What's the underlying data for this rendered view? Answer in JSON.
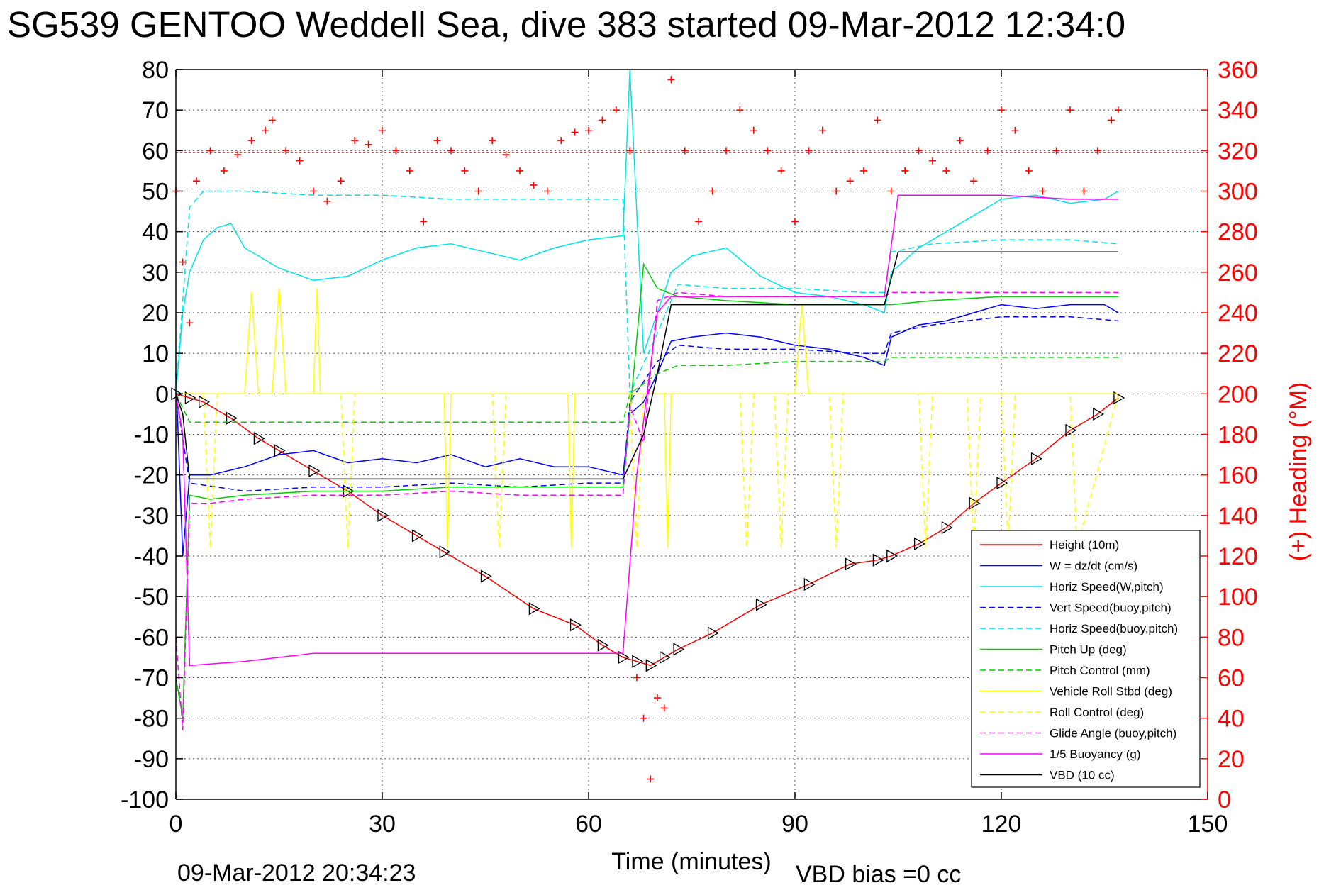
{
  "chart_data": {
    "type": "line",
    "title": "SG539 GENTOO Weddell Sea, dive 383 started 09-Mar-2012 12:34:0",
    "xlabel": "Time (minutes)",
    "ylabel": "",
    "ylabel_right": "(+) Heading (°M)",
    "xlim": [
      0,
      150
    ],
    "ylim": [
      -100,
      80
    ],
    "ylim_right": [
      0,
      360
    ],
    "x_ticks": [
      0,
      30,
      60,
      90,
      120,
      150
    ],
    "y_ticks": [
      80,
      70,
      60,
      50,
      40,
      30,
      20,
      10,
      0,
      -10,
      -20,
      -30,
      -40,
      -50,
      -60,
      -70,
      -80,
      -90,
      -100
    ],
    "y_ticks_right": [
      360,
      340,
      320,
      300,
      280,
      260,
      240,
      220,
      200,
      180,
      160,
      140,
      120,
      100,
      80,
      60,
      40,
      20,
      0
    ],
    "grid": true,
    "legend_position": "bottom-right",
    "footer_left": "09-Mar-2012 20:34:23",
    "footer_right": "VBD bias =0 cc",
    "reference_line_right": 319,
    "series": [
      {
        "name": "Height (10m)",
        "color": "#ff0000",
        "style": "solid",
        "marker": "triangle",
        "x": [
          0,
          2,
          4,
          8,
          12,
          15,
          20,
          25,
          30,
          35,
          39,
          45,
          52,
          58,
          62,
          65,
          67,
          69,
          71,
          73,
          78,
          85,
          92,
          98,
          102,
          104,
          108,
          112,
          116,
          120,
          125,
          130,
          134,
          137
        ],
        "y": [
          0,
          -1,
          -2,
          -6,
          -11,
          -14,
          -19,
          -24,
          -30,
          -35,
          -39,
          -45,
          -53,
          -57,
          -62,
          -65,
          -66,
          -67,
          -65,
          -63,
          -59,
          -52,
          -47,
          -42,
          -41,
          -40,
          -37,
          -33,
          -27,
          -22,
          -16,
          -9,
          -5,
          -1
        ]
      },
      {
        "name": "W = dz/dt (cm/s)",
        "color": "#0000ff",
        "style": "solid",
        "x": [
          0,
          1,
          2,
          5,
          10,
          15,
          20,
          25,
          30,
          35,
          40,
          45,
          50,
          55,
          60,
          65,
          66,
          68,
          70,
          72,
          75,
          80,
          85,
          90,
          95,
          100,
          103,
          104,
          108,
          112,
          116,
          120,
          125,
          130,
          135,
          137
        ],
        "y": [
          5,
          -40,
          -20,
          -20,
          -18,
          -15,
          -14,
          -17,
          -16,
          -17,
          -15,
          -18,
          -16,
          -18,
          -18,
          -20,
          -5,
          -2,
          5,
          13,
          14,
          15,
          14,
          12,
          11,
          9,
          7,
          14,
          17,
          18,
          20,
          22,
          21,
          22,
          22,
          20
        ]
      },
      {
        "name": "Horiz Speed(W,pitch)",
        "color": "#00e5e5",
        "style": "solid",
        "x": [
          0,
          1,
          2,
          4,
          6,
          8,
          10,
          15,
          20,
          25,
          30,
          35,
          40,
          45,
          50,
          55,
          60,
          65,
          66,
          68,
          70,
          72,
          75,
          80,
          85,
          90,
          95,
          100,
          103,
          104,
          108,
          112,
          116,
          120,
          125,
          130,
          135,
          137
        ],
        "y": [
          0,
          20,
          30,
          38,
          41,
          42,
          36,
          31,
          28,
          29,
          33,
          36,
          37,
          35,
          33,
          36,
          38,
          39,
          80,
          10,
          20,
          30,
          34,
          36,
          29,
          25,
          24,
          22,
          20,
          30,
          36,
          40,
          44,
          48,
          49,
          47,
          48,
          50
        ]
      },
      {
        "name": "Vert Speed(buoy,pitch)",
        "color": "#0000ff",
        "style": "dashed",
        "x": [
          0,
          2,
          10,
          20,
          30,
          40,
          50,
          60,
          65,
          66,
          70,
          73,
          80,
          90,
          100,
          103,
          104,
          110,
          120,
          130,
          137
        ],
        "y": [
          0,
          -22,
          -24,
          -23,
          -23,
          -22,
          -23,
          -22,
          -22,
          -2,
          8,
          12,
          11,
          11,
          10,
          10,
          15,
          17,
          19,
          19,
          18
        ]
      },
      {
        "name": "Horiz Speed(buoy,pitch)",
        "color": "#00e5e5",
        "style": "dashed",
        "x": [
          0,
          2,
          4,
          10,
          20,
          30,
          40,
          50,
          60,
          65,
          66,
          70,
          73,
          80,
          90,
          100,
          103,
          104,
          110,
          120,
          130,
          137
        ],
        "y": [
          0,
          46,
          50,
          50,
          49,
          49,
          48,
          48,
          48,
          48,
          0,
          15,
          27,
          26,
          26,
          25,
          25,
          35,
          37,
          38,
          38,
          37
        ]
      },
      {
        "name": "Pitch Up (deg)",
        "color": "#00cc00",
        "style": "solid",
        "x": [
          0,
          1,
          2,
          5,
          10,
          20,
          30,
          40,
          50,
          60,
          65,
          66,
          68,
          70,
          73,
          80,
          90,
          100,
          103,
          104,
          110,
          120,
          130,
          137
        ],
        "y": [
          -70,
          -80,
          -25,
          -26,
          -25,
          -24,
          -24,
          -23,
          -23,
          -23,
          -23,
          -5,
          32,
          26,
          24,
          23,
          22,
          22,
          22,
          22,
          23,
          24,
          24,
          24
        ]
      },
      {
        "name": "Pitch Control (mm)",
        "color": "#00cc00",
        "style": "dashed",
        "x": [
          0,
          2,
          10,
          20,
          30,
          40,
          50,
          60,
          65,
          66,
          70,
          73,
          80,
          90,
          100,
          103,
          104,
          110,
          120,
          130,
          137
        ],
        "y": [
          0,
          -7,
          -7,
          -7,
          -7,
          -7,
          -7,
          -7,
          -7,
          0,
          5,
          7,
          7,
          8,
          8,
          8,
          9,
          9,
          9,
          9,
          9
        ]
      },
      {
        "name": "Vehicle Roll Stbd (deg)",
        "color": "#ffff00",
        "style": "solid",
        "x": [
          0,
          5,
          10,
          11,
          12,
          14,
          15,
          16,
          20,
          20.5,
          21,
          25,
          35,
          39,
          39.5,
          40,
          50,
          57,
          57.5,
          58,
          65,
          70,
          71,
          71.5,
          72,
          80,
          90,
          91,
          92,
          100,
          110,
          120,
          130,
          137
        ],
        "y": [
          0,
          0,
          0,
          25,
          0,
          0,
          26,
          0,
          0,
          26,
          0,
          0,
          0,
          0,
          -38,
          0,
          0,
          0,
          -38,
          0,
          0,
          0,
          0,
          -38,
          0,
          0,
          0,
          22,
          0,
          0,
          0,
          0,
          0,
          0
        ]
      },
      {
        "name": "Roll Control (deg)",
        "color": "#ffff00",
        "style": "dashed",
        "x": [
          0,
          4,
          5,
          6,
          24,
          25,
          26,
          46,
          47,
          48,
          60,
          66,
          67,
          68,
          80,
          82,
          83,
          84,
          87,
          88,
          89,
          95,
          96,
          97,
          105,
          108,
          109,
          110,
          115,
          116,
          117,
          120,
          121,
          122,
          130,
          131,
          137
        ],
        "y": [
          0,
          0,
          -38,
          0,
          0,
          -38,
          0,
          0,
          -38,
          0,
          0,
          0,
          -38,
          0,
          0,
          0,
          -38,
          0,
          0,
          -38,
          0,
          0,
          -38,
          0,
          0,
          0,
          -38,
          0,
          0,
          -38,
          0,
          0,
          -38,
          0,
          0,
          -38,
          0
        ]
      },
      {
        "name": "Glide Angle (buoy,pitch)",
        "color": "#ff00ff",
        "style": "dashed",
        "x": [
          0,
          1,
          2,
          5,
          10,
          20,
          30,
          40,
          50,
          60,
          65,
          66,
          68,
          70,
          73,
          80,
          90,
          100,
          103,
          104,
          110,
          120,
          130,
          137
        ],
        "y": [
          -60,
          -83,
          -27,
          -27,
          -26,
          -25,
          -25,
          -24,
          -25,
          -25,
          -25,
          -3,
          -12,
          23,
          25,
          24,
          24,
          24,
          24,
          25,
          25,
          25,
          25,
          25
        ]
      },
      {
        "name": "1/5 Buoyancy (g)",
        "color": "#ff00ff",
        "style": "solid",
        "x": [
          0,
          1,
          2,
          10,
          20,
          30,
          40,
          50,
          60,
          65,
          67,
          70,
          72,
          80,
          90,
          100,
          103,
          105,
          110,
          120,
          130,
          137
        ],
        "y": [
          0,
          -10,
          -67,
          -66,
          -64,
          -64,
          -64,
          -64,
          -64,
          -64,
          -20,
          20,
          24,
          24,
          24,
          24,
          24,
          49,
          49,
          49,
          48,
          48
        ]
      },
      {
        "name": "VBD (10 cc)",
        "color": "#000000",
        "style": "solid",
        "x": [
          0,
          1,
          2,
          10,
          20,
          30,
          40,
          50,
          60,
          65,
          68,
          70,
          72,
          80,
          90,
          100,
          103,
          105,
          110,
          120,
          130,
          137
        ],
        "y": [
          0,
          -5,
          -21,
          -21,
          -21,
          -21,
          -21,
          -21,
          -21,
          -21,
          -10,
          5,
          22,
          22,
          22,
          22,
          22,
          35,
          35,
          35,
          35,
          35
        ]
      }
    ],
    "heading_series": {
      "name": "(+) Heading (°M)",
      "color": "#ff0000",
      "marker": "plus",
      "axis": "right",
      "x": [
        0,
        1,
        2,
        3,
        5,
        7,
        9,
        11,
        13,
        14,
        16,
        18,
        20,
        22,
        24,
        26,
        28,
        30,
        32,
        34,
        36,
        38,
        40,
        42,
        44,
        46,
        48,
        50,
        52,
        54,
        56,
        58,
        60,
        62,
        64,
        66,
        67,
        68,
        69,
        70,
        71,
        72,
        74,
        76,
        78,
        80,
        82,
        84,
        86,
        88,
        90,
        92,
        94,
        96,
        98,
        100,
        102,
        104,
        106,
        108,
        110,
        112,
        114,
        116,
        118,
        120,
        122,
        124,
        126,
        128,
        130,
        132,
        134,
        136,
        137
      ],
      "y": [
        300,
        265,
        235,
        305,
        320,
        310,
        318,
        325,
        330,
        335,
        320,
        315,
        300,
        295,
        305,
        325,
        323,
        330,
        320,
        310,
        285,
        325,
        320,
        310,
        300,
        325,
        318,
        310,
        303,
        300,
        325,
        329,
        330,
        335,
        340,
        320,
        60,
        40,
        10,
        50,
        45,
        355,
        320,
        285,
        300,
        320,
        340,
        330,
        320,
        310,
        285,
        320,
        330,
        300,
        305,
        310,
        335,
        300,
        310,
        320,
        315,
        310,
        325,
        305,
        320,
        340,
        330,
        310,
        300,
        320,
        340,
        300,
        320,
        335,
        340
      ]
    }
  }
}
